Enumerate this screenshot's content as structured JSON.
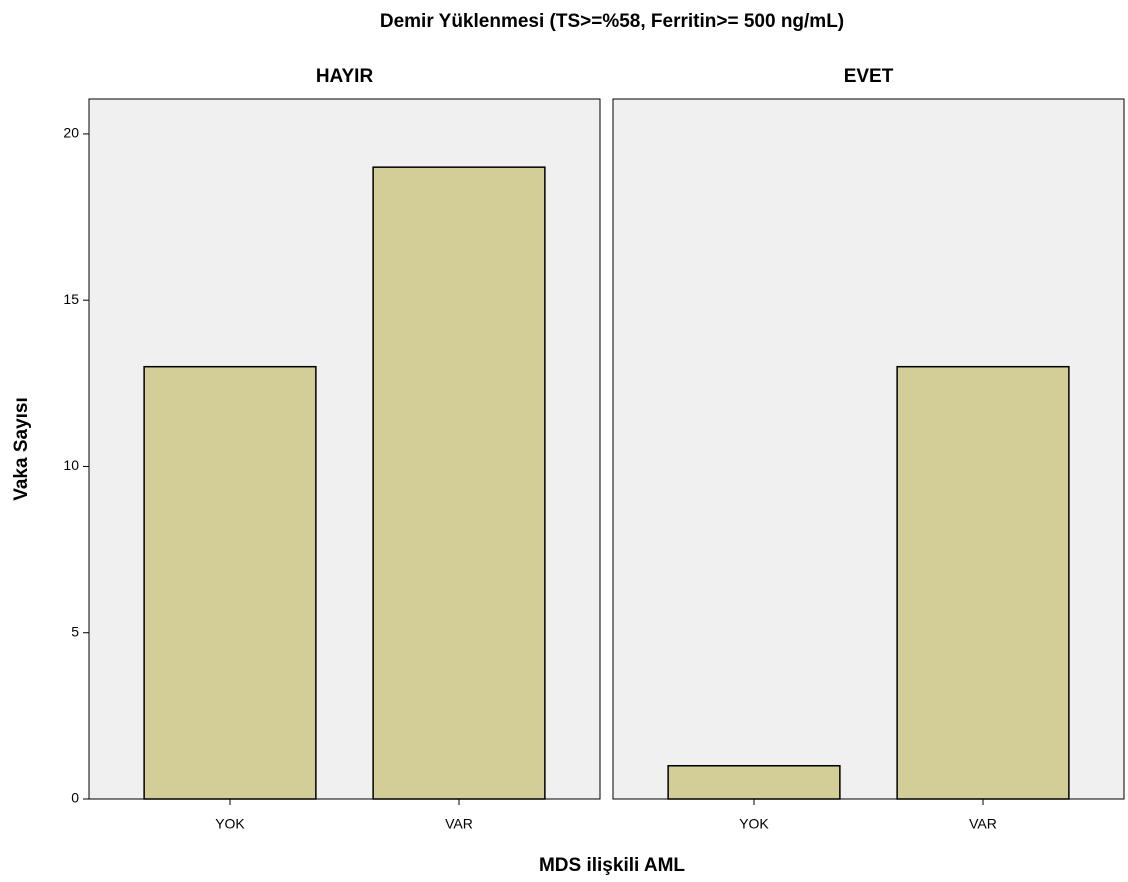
{
  "title": "Demir Yüklenmesi (TS>=%58, Ferritin>= 500 ng/mL)",
  "x_label": "MDS ilişkili AML",
  "y_label": "Vaka Sayısı",
  "chart_data": [
    {
      "type": "bar",
      "title": "HAYIR",
      "categories": [
        "YOK",
        "VAR"
      ],
      "values": [
        13,
        19
      ],
      "color": "#d3ce97",
      "ylim": [
        0,
        21.05
      ],
      "yticks": [
        0,
        5,
        10,
        15,
        20
      ]
    },
    {
      "type": "bar",
      "title": "EVET",
      "categories": [
        "YOK",
        "VAR"
      ],
      "values": [
        1,
        13
      ],
      "color": "#d3ce97",
      "ylim": [
        0,
        21.05
      ]
    }
  ]
}
